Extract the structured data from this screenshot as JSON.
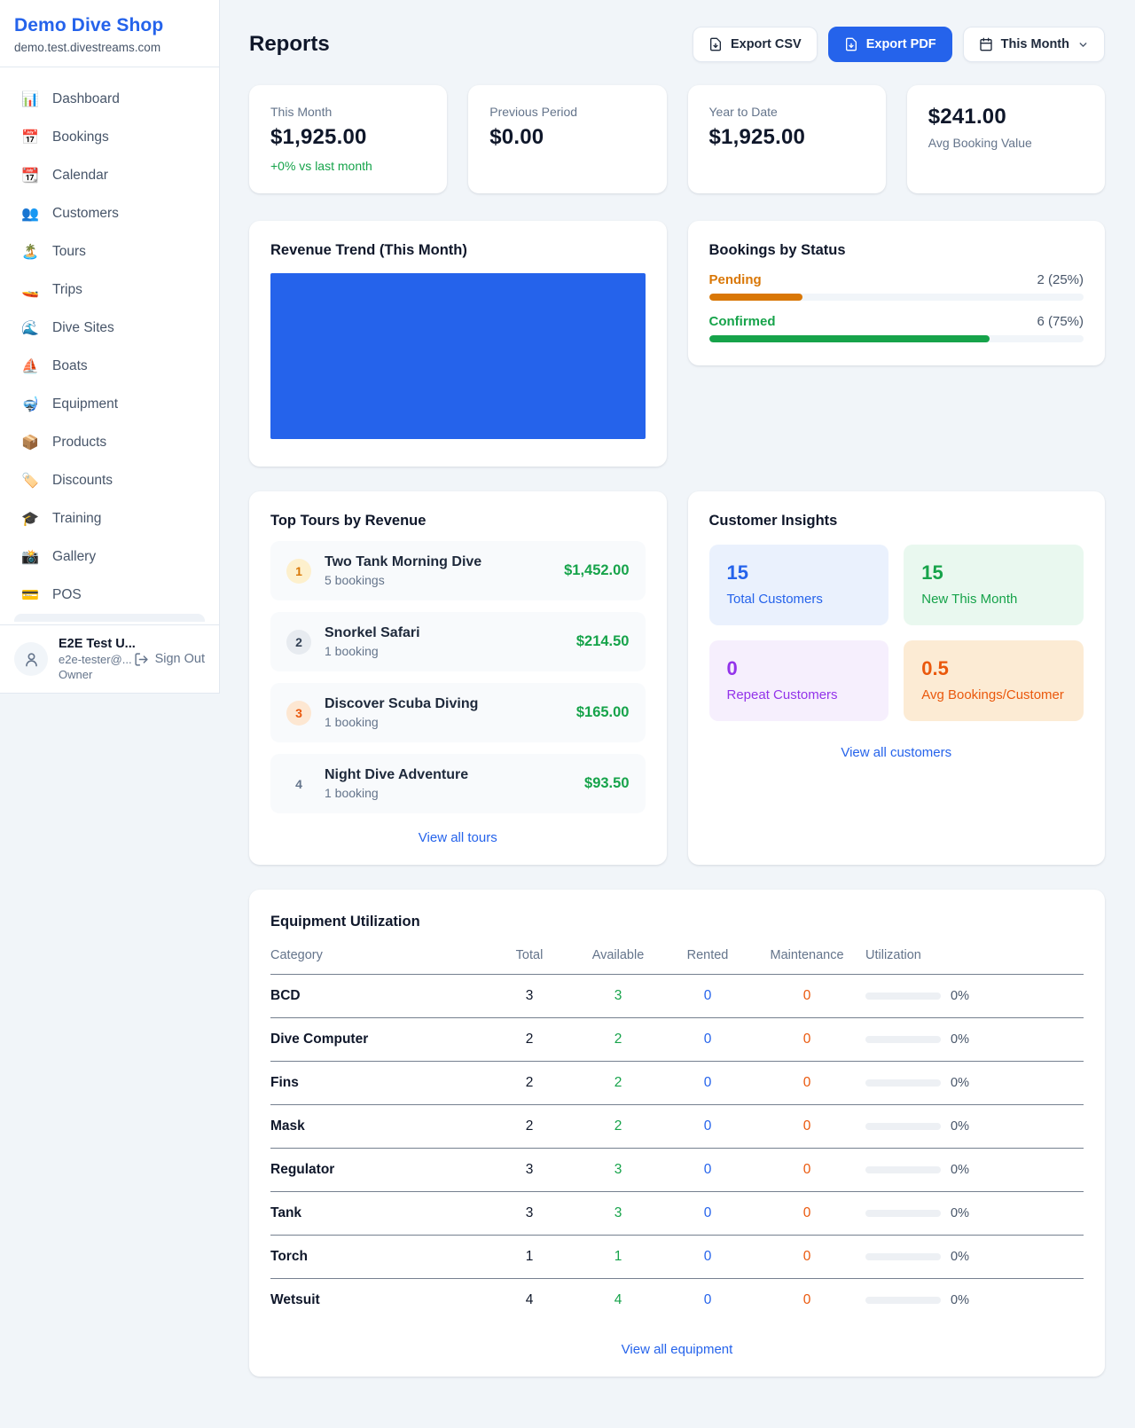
{
  "colors": {
    "accent_blue": "#2563eb",
    "money_green": "#16a34a",
    "pending_orange": "#d97706",
    "maintenance_orange": "#ea580c",
    "repeat_purple": "#9333ea"
  },
  "sidebar": {
    "shop_name": "Demo Dive Shop",
    "shop_domain": "demo.test.divestreams.com",
    "items": [
      {
        "icon": "📊",
        "label": "Dashboard"
      },
      {
        "icon": "📅",
        "label": "Bookings"
      },
      {
        "icon": "📆",
        "label": "Calendar"
      },
      {
        "icon": "👥",
        "label": "Customers"
      },
      {
        "icon": "🏝️",
        "label": "Tours"
      },
      {
        "icon": "🚤",
        "label": "Trips"
      },
      {
        "icon": "🌊",
        "label": "Dive Sites"
      },
      {
        "icon": "⛵",
        "label": "Boats"
      },
      {
        "icon": "🤿",
        "label": "Equipment"
      },
      {
        "icon": "📦",
        "label": "Products"
      },
      {
        "icon": "🏷️",
        "label": "Discounts"
      },
      {
        "icon": "🎓",
        "label": "Training"
      },
      {
        "icon": "📸",
        "label": "Gallery"
      },
      {
        "icon": "💳",
        "label": "POS"
      }
    ],
    "user": {
      "name": "E2E Test U...",
      "email": "e2e-tester@...",
      "role": "Owner",
      "sign_out": "Sign Out"
    }
  },
  "header": {
    "title": "Reports",
    "export_csv": "Export CSV",
    "export_pdf": "Export PDF",
    "period": "This Month"
  },
  "stats": {
    "this_month": {
      "label": "This Month",
      "value": "$1,925.00",
      "delta": "+0% vs last month"
    },
    "previous_period": {
      "label": "Previous Period",
      "value": "$0.00"
    },
    "year_to_date": {
      "label": "Year to Date",
      "value": "$1,925.00"
    },
    "avg_booking": {
      "value": "$241.00",
      "label": "Avg Booking Value"
    }
  },
  "revenue_trend": {
    "title": "Revenue Trend (This Month)"
  },
  "bookings_by_status": {
    "title": "Bookings by Status",
    "rows": [
      {
        "label": "Pending",
        "count_text": "2 (25%)",
        "pct": 25
      },
      {
        "label": "Confirmed",
        "count_text": "6 (75%)",
        "pct": 75
      }
    ]
  },
  "top_tours": {
    "title": "Top Tours by Revenue",
    "items": [
      {
        "rank": "1",
        "name": "Two Tank Morning Dive",
        "bookings": "5 bookings",
        "revenue": "$1,452.00"
      },
      {
        "rank": "2",
        "name": "Snorkel Safari",
        "bookings": "1 booking",
        "revenue": "$214.50"
      },
      {
        "rank": "3",
        "name": "Discover Scuba Diving",
        "bookings": "1 booking",
        "revenue": "$165.00"
      },
      {
        "rank": "4",
        "name": "Night Dive Adventure",
        "bookings": "1 booking",
        "revenue": "$93.50"
      }
    ],
    "view_all": "View all tours"
  },
  "customer_insights": {
    "title": "Customer Insights",
    "cards": [
      {
        "value": "15",
        "label": "Total Customers"
      },
      {
        "value": "15",
        "label": "New This Month"
      },
      {
        "value": "0",
        "label": "Repeat Customers"
      },
      {
        "value": "0.5",
        "label": "Avg Bookings/Customer"
      }
    ],
    "view_all": "View all customers"
  },
  "equipment": {
    "title": "Equipment Utilization",
    "columns": [
      "Category",
      "Total",
      "Available",
      "Rented",
      "Maintenance",
      "Utilization"
    ],
    "rows": [
      {
        "category": "BCD",
        "total": "3",
        "available": "3",
        "rented": "0",
        "maintenance": "0",
        "utilization": "0%",
        "util_pct": 0
      },
      {
        "category": "Dive Computer",
        "total": "2",
        "available": "2",
        "rented": "0",
        "maintenance": "0",
        "utilization": "0%",
        "util_pct": 0
      },
      {
        "category": "Fins",
        "total": "2",
        "available": "2",
        "rented": "0",
        "maintenance": "0",
        "utilization": "0%",
        "util_pct": 0
      },
      {
        "category": "Mask",
        "total": "2",
        "available": "2",
        "rented": "0",
        "maintenance": "0",
        "utilization": "0%",
        "util_pct": 0
      },
      {
        "category": "Regulator",
        "total": "3",
        "available": "3",
        "rented": "0",
        "maintenance": "0",
        "utilization": "0%",
        "util_pct": 0
      },
      {
        "category": "Tank",
        "total": "3",
        "available": "3",
        "rented": "0",
        "maintenance": "0",
        "utilization": "0%",
        "util_pct": 0
      },
      {
        "category": "Torch",
        "total": "1",
        "available": "1",
        "rented": "0",
        "maintenance": "0",
        "utilization": "0%",
        "util_pct": 0
      },
      {
        "category": "Wetsuit",
        "total": "4",
        "available": "4",
        "rented": "0",
        "maintenance": "0",
        "utilization": "0%",
        "util_pct": 0
      }
    ],
    "view_all": "View all equipment"
  },
  "chart_data": [
    {
      "type": "bar",
      "title": "Revenue Trend (This Month)",
      "categories": [
        "This Month"
      ],
      "values": [
        1925.0
      ],
      "color": "#2563eb",
      "note": "rendered as a single solid blue block filling the entire plot area; no axes, ticks or labels visible"
    },
    {
      "type": "bar",
      "title": "Bookings by Status",
      "categories": [
        "Pending",
        "Confirmed"
      ],
      "values": [
        2,
        6
      ],
      "percentages": [
        25,
        75
      ],
      "colors": [
        "#d97706",
        "#16a34a"
      ],
      "legend_position": "none"
    }
  ]
}
